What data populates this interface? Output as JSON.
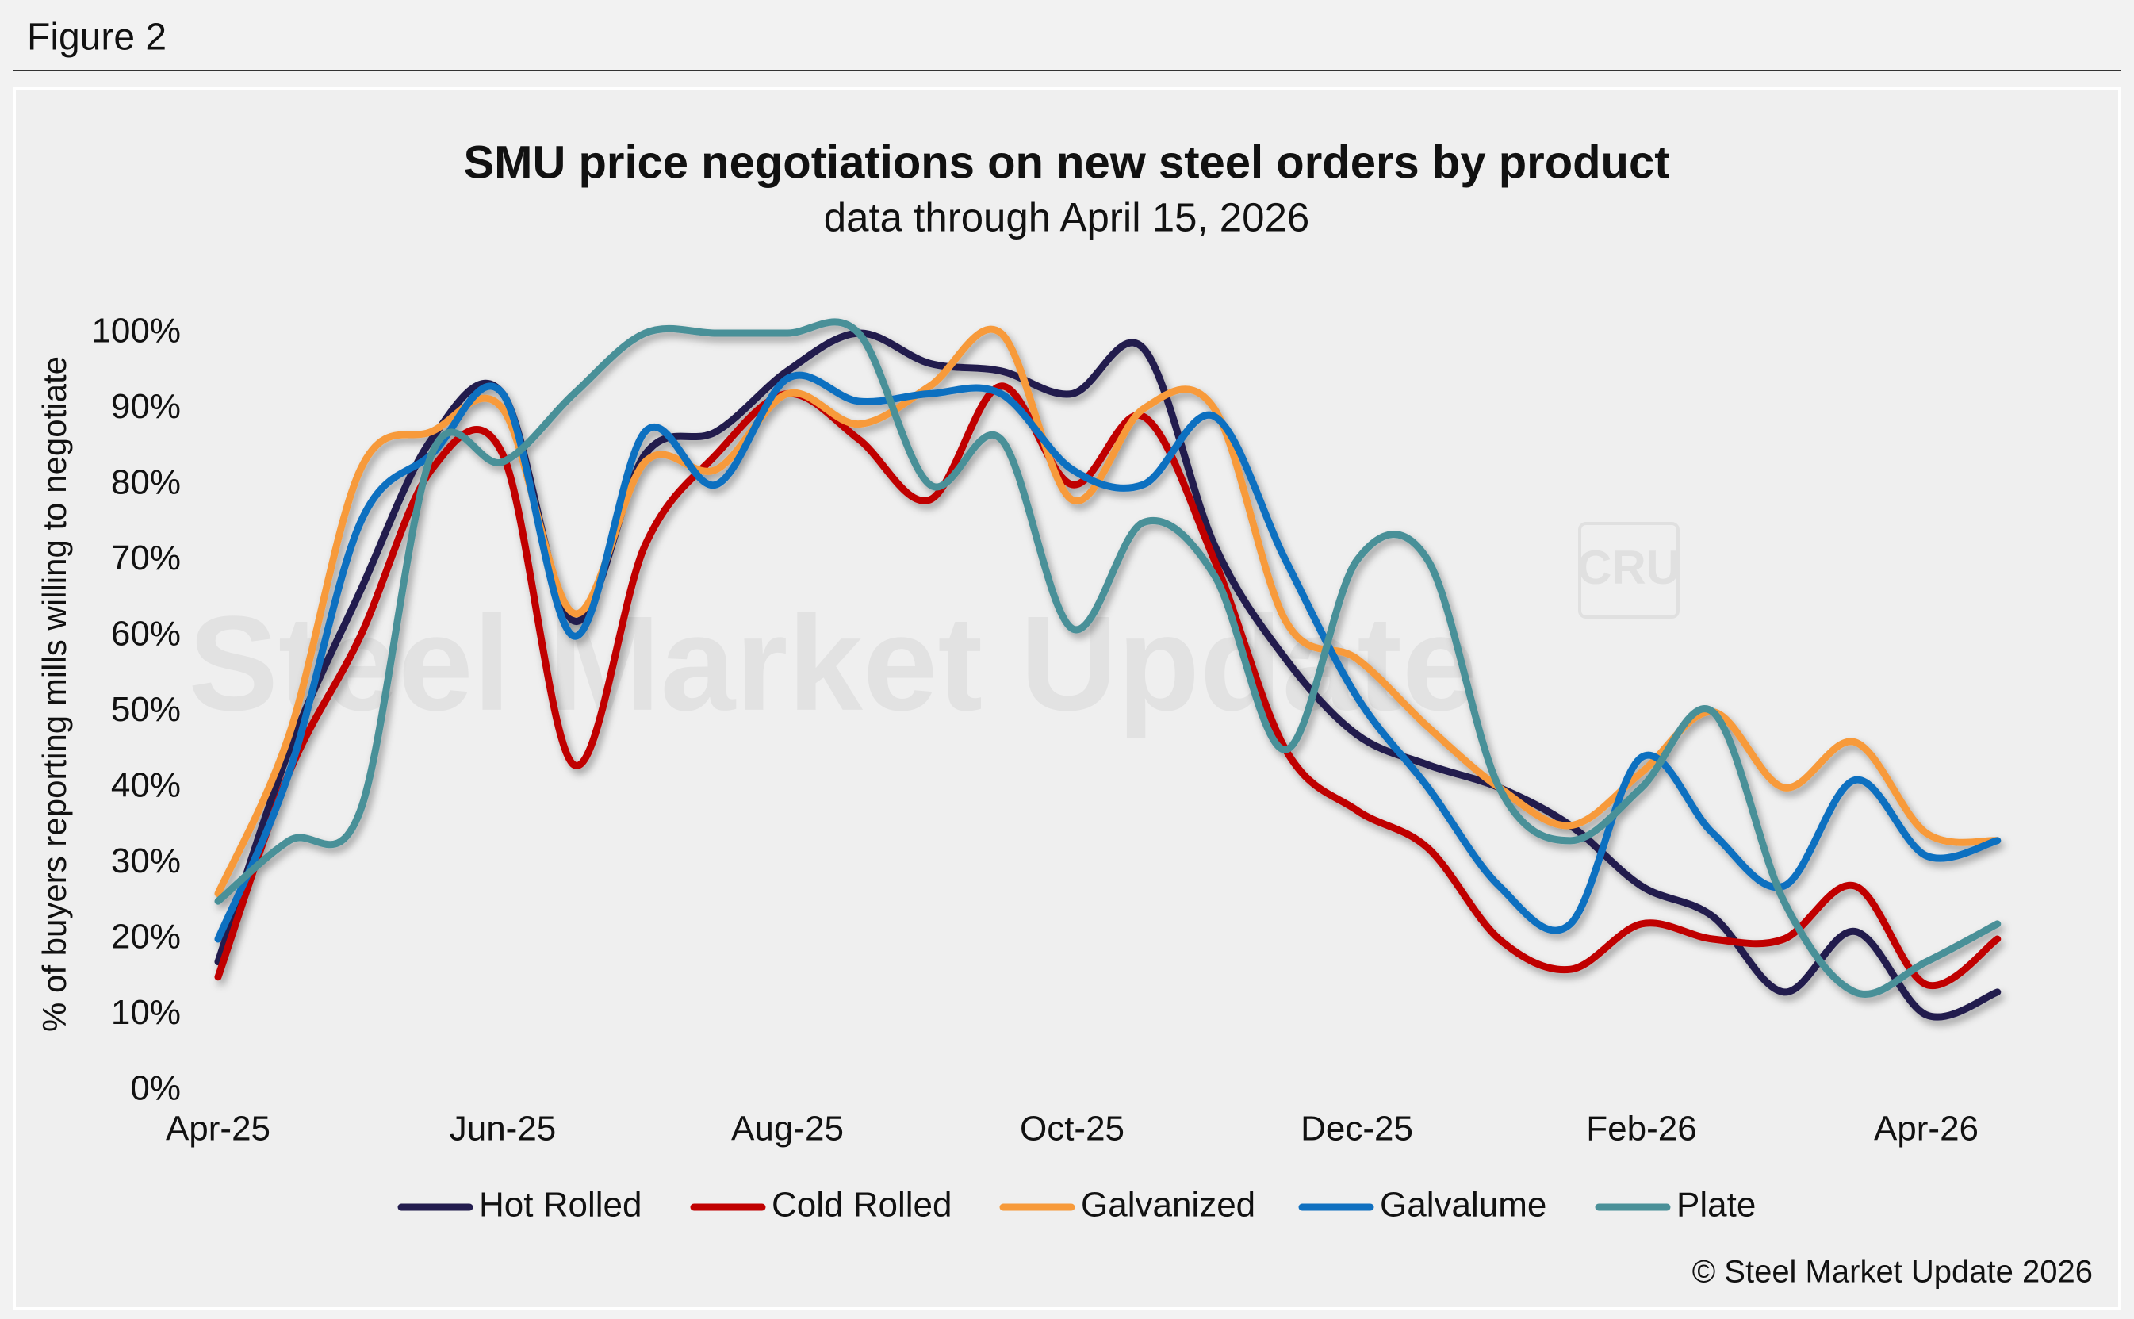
{
  "figure_label": "Figure 2",
  "copyright": "© Steel Market Update 2026",
  "watermark": "Steel Market Update",
  "watermark_logo": "CRU",
  "chart_data": {
    "type": "line",
    "title": "SMU price negotiations on new steel orders by product",
    "subtitle": "data through April 15, 2026",
    "y_label": "% of buyers reporting mills willing to negotiate",
    "categories": [
      "Apr-25",
      null,
      null,
      null,
      "Jun-25",
      null,
      null,
      null,
      "Aug-25",
      null,
      null,
      null,
      "Oct-25",
      null,
      null,
      null,
      "Dec-25",
      null,
      null,
      null,
      "Feb-26",
      null,
      null,
      null,
      "Apr-26",
      null
    ],
    "ylim": [
      0,
      100
    ],
    "yticks": [
      {
        "value": 0,
        "label": "0%"
      },
      {
        "value": 10,
        "label": "10%"
      },
      {
        "value": 20,
        "label": "20%"
      },
      {
        "value": 30,
        "label": "30%"
      },
      {
        "value": 40,
        "label": "40%"
      },
      {
        "value": 50,
        "label": "50%"
      },
      {
        "value": 60,
        "label": "60%"
      },
      {
        "value": 70,
        "label": "70%"
      },
      {
        "value": 80,
        "label": "80%"
      },
      {
        "value": 90,
        "label": "90%"
      },
      {
        "value": 100,
        "label": "100%"
      }
    ],
    "grid": false,
    "legend": "bottom",
    "series": [
      {
        "name": "Hot Rolled",
        "color": "#221c4e",
        "values": [
          17,
          45,
          66,
          86,
          92,
          62,
          84,
          87,
          95,
          100,
          96,
          95,
          92,
          98,
          72,
          57,
          47,
          43,
          40,
          35,
          27,
          23,
          13,
          21,
          10,
          13
        ]
      },
      {
        "name": "Cold Rolled",
        "color": "#c00000",
        "values": [
          15,
          42,
          60,
          82,
          84,
          43,
          72,
          84,
          92,
          86,
          78,
          93,
          80,
          89,
          70,
          45,
          37,
          32,
          20,
          16,
          22,
          20,
          20,
          27,
          14,
          20
        ]
      },
      {
        "name": "Galvanized",
        "color": "#f79a3a",
        "values": [
          26,
          47,
          82,
          87,
          90,
          63,
          83,
          82,
          92,
          88,
          93,
          100,
          78,
          90,
          90,
          62,
          57,
          48,
          40,
          35,
          42,
          50,
          40,
          46,
          34,
          33
        ]
      },
      {
        "name": "Galvalume",
        "color": "#1070c0",
        "values": [
          20,
          42,
          75,
          84,
          92,
          60,
          87,
          80,
          94,
          91,
          92,
          92,
          82,
          80,
          89,
          70,
          52,
          40,
          27,
          22,
          44,
          34,
          27,
          41,
          31,
          33
        ]
      },
      {
        "name": "Plate",
        "color": "#4a9098",
        "values": [
          25,
          33,
          37,
          84,
          83,
          92,
          100,
          100,
          100,
          100,
          80,
          86,
          61,
          75,
          68,
          45,
          70,
          70,
          40,
          33,
          40,
          50,
          25,
          13,
          17,
          22
        ]
      }
    ]
  }
}
